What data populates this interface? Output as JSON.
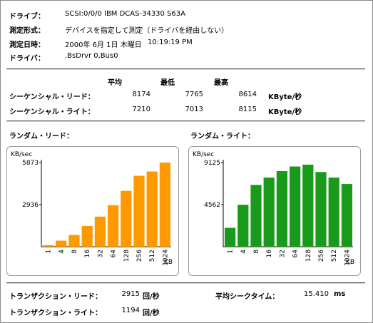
{
  "info": {
    "drive_label": "ドライブ",
    "drive_value": "SCSI:0/0/0 IBM DCAS-34330 S63A",
    "method_label": "測定形式",
    "method_value": "デバイスを指定して測定（ドライバを経由しない）",
    "date_label": "測定日時",
    "date_value": "2000年 6月 1日 木曜日",
    "time_value": "10:19:19 PM",
    "driver_label": "ドライバ",
    "driver_value": ".BsDrvr 0,Bus0"
  },
  "sequential": {
    "headers": [
      "平均",
      "最低",
      "最高"
    ],
    "rows": [
      {
        "label": "シーケンシャル・リード",
        "avg": "8174",
        "min": "7765",
        "max": "8614",
        "unit": "KByte/秒"
      },
      {
        "label": "シーケンシャル・ライト",
        "avg": "7210",
        "min": "7013",
        "max": "8115",
        "unit": "KByte/秒"
      }
    ]
  },
  "random_read_title": "ランダム・リード",
  "random_write_title": "ランダム・ライト",
  "chart_data": [
    {
      "type": "bar",
      "ylabel": "KB/sec",
      "xlabel": "KB",
      "categories": [
        "1",
        "4",
        "8",
        "16",
        "32",
        "64",
        "128",
        "256",
        "512",
        "1024"
      ],
      "values": [
        110,
        420,
        820,
        1450,
        2100,
        2900,
        3900,
        4950,
        5250,
        5873
      ],
      "yticks": [
        2936,
        5873
      ],
      "ylim": [
        0,
        5873
      ],
      "color": "#ff9900"
    },
    {
      "type": "bar",
      "ylabel": "KB/sec",
      "xlabel": "KB",
      "categories": [
        "1",
        "4",
        "8",
        "16",
        "32",
        "64",
        "128",
        "256",
        "512",
        "1024"
      ],
      "values": [
        2050,
        4550,
        6700,
        7500,
        8200,
        8700,
        8900,
        8100,
        7500,
        6800
      ],
      "yticks": [
        4562,
        9125
      ],
      "ylim": [
        0,
        9125
      ],
      "color": "#1a9a1a"
    }
  ],
  "transactions": {
    "read_label": "トランザクション・リード",
    "read_value": "2915",
    "read_unit": "回/秒",
    "write_label": "トランザクション・ライト",
    "write_value": "1194",
    "write_unit": "回/秒",
    "seek_label": "平均シークタイム",
    "seek_value": "15.410",
    "seek_unit": "ms"
  }
}
